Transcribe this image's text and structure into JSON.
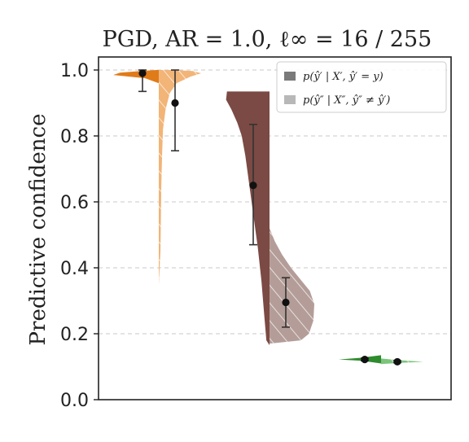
{
  "chart_data": {
    "type": "violin",
    "title": "PGD, AR = 1.0, ℓ∞ = 16 / 255",
    "xlabel": "",
    "ylabel": "Predictive confidence",
    "ylim": [
      0.0,
      1.02
    ],
    "yticks": [
      "0.0",
      "0.2",
      "0.4",
      "0.6",
      "0.8",
      "1.0"
    ],
    "grid": "horizontal dashed",
    "legend_position": "top-right",
    "legend": [
      {
        "label": "p(ŷ′ | X′, ŷ′ = y)",
        "color": "#7a7a7a"
      },
      {
        "label": "p(ŷ″ | X″, ŷ″ ≠ ŷ′)",
        "color": "#b8b8b8"
      }
    ],
    "groups": [
      {
        "color_left": "#e07b1a",
        "color_right": "#f2b477",
        "left": {
          "mean": 0.99,
          "err": [
            0.935,
            1.0
          ],
          "range": [
            0.96,
            1.0
          ]
        },
        "right": {
          "mean": 0.9,
          "err": [
            0.755,
            1.0
          ],
          "range": [
            0.35,
            1.0
          ]
        }
      },
      {
        "color_left": "#7b4a44",
        "color_right": "#b49d98",
        "left": {
          "mean": 0.65,
          "err": [
            0.47,
            0.835
          ],
          "range": [
            0.165,
            0.935
          ]
        },
        "right": {
          "mean": 0.295,
          "err": [
            0.22,
            0.37
          ],
          "range": [
            0.17,
            0.52
          ]
        }
      },
      {
        "color_left": "#2e8b2e",
        "color_right": "#7cc47c",
        "left": {
          "mean": 0.122,
          "err": [
            0.118,
            0.126
          ],
          "range": [
            0.11,
            0.135
          ]
        },
        "right": {
          "mean": 0.115,
          "err": [
            0.112,
            0.118
          ],
          "range": [
            0.108,
            0.125
          ]
        }
      }
    ]
  }
}
